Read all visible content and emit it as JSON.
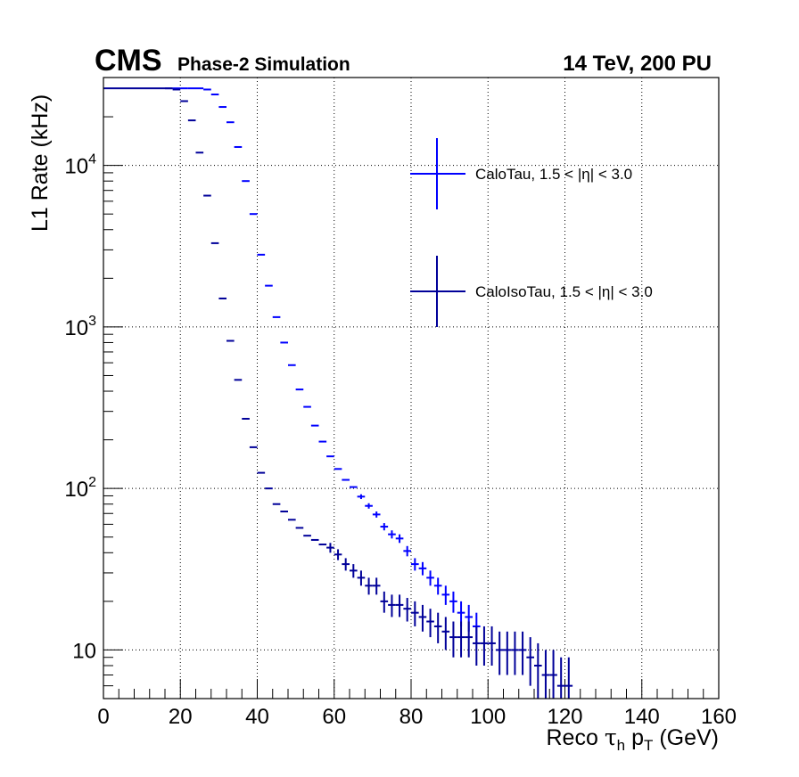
{
  "header": {
    "experiment": "CMS",
    "subtitle": "Phase-2 Simulation",
    "lumi_text": "14 TeV, 200 PU"
  },
  "colors": {
    "calotau": "#0000ff",
    "caloisotau": "#000099",
    "frame": "#000000"
  },
  "chart_data": {
    "type": "scatter",
    "xlabel": "Reco τ_h p_T (GeV)",
    "ylabel": "L1 Rate (kHz)",
    "xlim": [
      0,
      160
    ],
    "ylim": [
      5,
      35000
    ],
    "yscale": "log",
    "grid": true,
    "legend_position": "top-right",
    "x_ticks": [
      "0",
      "20",
      "40",
      "60",
      "80",
      "100",
      "120",
      "140",
      "160"
    ],
    "y_ticks": [
      {
        "value": 10,
        "base": "10",
        "exp": ""
      },
      {
        "value": 100,
        "base": "10",
        "exp": "2"
      },
      {
        "value": 1000,
        "base": "10",
        "exp": "3"
      },
      {
        "value": 10000,
        "base": "10",
        "exp": "4"
      }
    ],
    "bin_width": 2,
    "flat_plateau": {
      "x_from": 0,
      "x_to": 16,
      "y": 30000
    },
    "series": [
      {
        "name": "CaloTau, 1.5 < |η| < 3.0",
        "color": "#0000ff",
        "points": [
          [
            17,
            30000,
            0
          ],
          [
            19,
            30000,
            0
          ],
          [
            21,
            30000,
            0
          ],
          [
            23,
            30000,
            0
          ],
          [
            25,
            30000,
            0
          ],
          [
            27,
            29500,
            0
          ],
          [
            29,
            27500,
            0
          ],
          [
            31,
            23000,
            0
          ],
          [
            33,
            18500,
            0
          ],
          [
            35,
            13000,
            0
          ],
          [
            37,
            8000,
            0
          ],
          [
            39,
            5000,
            0
          ],
          [
            41,
            2800,
            0
          ],
          [
            43,
            1800,
            0
          ],
          [
            45,
            1150,
            0
          ],
          [
            47,
            800,
            0
          ],
          [
            49,
            580,
            0
          ],
          [
            51,
            410,
            0
          ],
          [
            53,
            320,
            0
          ],
          [
            55,
            245,
            0
          ],
          [
            57,
            195,
            0
          ],
          [
            59,
            158,
            0
          ],
          [
            61,
            132,
            0
          ],
          [
            63,
            113,
            0
          ],
          [
            65,
            102,
            0
          ],
          [
            67,
            89,
            3
          ],
          [
            69,
            78,
            3
          ],
          [
            71,
            69,
            3
          ],
          [
            73,
            58,
            3
          ],
          [
            75,
            52,
            3
          ],
          [
            77,
            49,
            3
          ],
          [
            79,
            41,
            3
          ],
          [
            81,
            34,
            3
          ],
          [
            83,
            32,
            3
          ],
          [
            85,
            28,
            3
          ],
          [
            87,
            25,
            3
          ],
          [
            89,
            22,
            3
          ],
          [
            91,
            20,
            3
          ],
          [
            93,
            17,
            3
          ],
          [
            95,
            16,
            3
          ],
          [
            97,
            14,
            3
          ]
        ]
      },
      {
        "name": "CaloIsoTau, 1.5 < |η| < 3.0",
        "color": "#000099",
        "points": [
          [
            17,
            30000,
            0
          ],
          [
            19,
            29500,
            0
          ],
          [
            21,
            25000,
            0
          ],
          [
            23,
            19000,
            0
          ],
          [
            25,
            12000,
            0
          ],
          [
            27,
            6500,
            0
          ],
          [
            29,
            3300,
            0
          ],
          [
            31,
            1500,
            0
          ],
          [
            33,
            820,
            0
          ],
          [
            35,
            470,
            0
          ],
          [
            37,
            270,
            0
          ],
          [
            39,
            180,
            0
          ],
          [
            41,
            125,
            0
          ],
          [
            43,
            100,
            0
          ],
          [
            45,
            80,
            0
          ],
          [
            47,
            72,
            0
          ],
          [
            49,
            64,
            0
          ],
          [
            51,
            57,
            0
          ],
          [
            53,
            51,
            0
          ],
          [
            55,
            48,
            0
          ],
          [
            57,
            45,
            0
          ],
          [
            59,
            43,
            3
          ],
          [
            61,
            39,
            3
          ],
          [
            63,
            34,
            3
          ],
          [
            65,
            31,
            3
          ],
          [
            67,
            28,
            3
          ],
          [
            69,
            25,
            3
          ],
          [
            71,
            25,
            3
          ],
          [
            73,
            20,
            3
          ],
          [
            75,
            19,
            3
          ],
          [
            77,
            19,
            3
          ],
          [
            79,
            18,
            3
          ],
          [
            81,
            17,
            3
          ],
          [
            83,
            16,
            3
          ],
          [
            85,
            15,
            3
          ],
          [
            87,
            14,
            3
          ],
          [
            89,
            13,
            3
          ],
          [
            91,
            12,
            3
          ],
          [
            93,
            12,
            3
          ],
          [
            95,
            12,
            3
          ],
          [
            97,
            11,
            3
          ],
          [
            99,
            11,
            3
          ],
          [
            101,
            11,
            3
          ],
          [
            103,
            10,
            3
          ],
          [
            105,
            10,
            3
          ],
          [
            107,
            10,
            3
          ],
          [
            109,
            10,
            3
          ],
          [
            111,
            9,
            3
          ],
          [
            113,
            8,
            3
          ],
          [
            115,
            7,
            3
          ],
          [
            117,
            7,
            3
          ],
          [
            119,
            6,
            3
          ],
          [
            121,
            6,
            3
          ]
        ]
      }
    ]
  }
}
